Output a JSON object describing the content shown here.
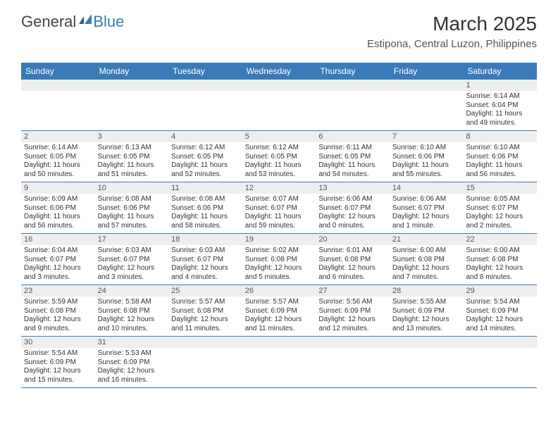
{
  "logo": {
    "dark": "General",
    "blue": "Blue"
  },
  "title": "March 2025",
  "location": "Estipona, Central Luzon, Philippines",
  "colors": {
    "header_bg": "#3a7ab8",
    "header_text": "#ffffff",
    "daynum_bg": "#eeeeee",
    "border": "#3a7ab8",
    "body_text": "#333333"
  },
  "font": {
    "family": "Arial",
    "title_size": 28,
    "location_size": 15,
    "header_size": 12,
    "cell_size": 10
  },
  "dayHeaders": [
    "Sunday",
    "Monday",
    "Tuesday",
    "Wednesday",
    "Thursday",
    "Friday",
    "Saturday"
  ],
  "weeks": [
    [
      {
        "n": "",
        "sr": "",
        "ss": "",
        "dl": ""
      },
      {
        "n": "",
        "sr": "",
        "ss": "",
        "dl": ""
      },
      {
        "n": "",
        "sr": "",
        "ss": "",
        "dl": ""
      },
      {
        "n": "",
        "sr": "",
        "ss": "",
        "dl": ""
      },
      {
        "n": "",
        "sr": "",
        "ss": "",
        "dl": ""
      },
      {
        "n": "",
        "sr": "",
        "ss": "",
        "dl": ""
      },
      {
        "n": "1",
        "sr": "Sunrise: 6:14 AM",
        "ss": "Sunset: 6:04 PM",
        "dl": "Daylight: 11 hours and 49 minutes."
      }
    ],
    [
      {
        "n": "2",
        "sr": "Sunrise: 6:14 AM",
        "ss": "Sunset: 6:05 PM",
        "dl": "Daylight: 11 hours and 50 minutes."
      },
      {
        "n": "3",
        "sr": "Sunrise: 6:13 AM",
        "ss": "Sunset: 6:05 PM",
        "dl": "Daylight: 11 hours and 51 minutes."
      },
      {
        "n": "4",
        "sr": "Sunrise: 6:12 AM",
        "ss": "Sunset: 6:05 PM",
        "dl": "Daylight: 11 hours and 52 minutes."
      },
      {
        "n": "5",
        "sr": "Sunrise: 6:12 AM",
        "ss": "Sunset: 6:05 PM",
        "dl": "Daylight: 11 hours and 53 minutes."
      },
      {
        "n": "6",
        "sr": "Sunrise: 6:11 AM",
        "ss": "Sunset: 6:05 PM",
        "dl": "Daylight: 11 hours and 54 minutes."
      },
      {
        "n": "7",
        "sr": "Sunrise: 6:10 AM",
        "ss": "Sunset: 6:06 PM",
        "dl": "Daylight: 11 hours and 55 minutes."
      },
      {
        "n": "8",
        "sr": "Sunrise: 6:10 AM",
        "ss": "Sunset: 6:06 PM",
        "dl": "Daylight: 11 hours and 56 minutes."
      }
    ],
    [
      {
        "n": "9",
        "sr": "Sunrise: 6:09 AM",
        "ss": "Sunset: 6:06 PM",
        "dl": "Daylight: 11 hours and 56 minutes."
      },
      {
        "n": "10",
        "sr": "Sunrise: 6:08 AM",
        "ss": "Sunset: 6:06 PM",
        "dl": "Daylight: 11 hours and 57 minutes."
      },
      {
        "n": "11",
        "sr": "Sunrise: 6:08 AM",
        "ss": "Sunset: 6:06 PM",
        "dl": "Daylight: 11 hours and 58 minutes."
      },
      {
        "n": "12",
        "sr": "Sunrise: 6:07 AM",
        "ss": "Sunset: 6:07 PM",
        "dl": "Daylight: 11 hours and 59 minutes."
      },
      {
        "n": "13",
        "sr": "Sunrise: 6:06 AM",
        "ss": "Sunset: 6:07 PM",
        "dl": "Daylight: 12 hours and 0 minutes."
      },
      {
        "n": "14",
        "sr": "Sunrise: 6:06 AM",
        "ss": "Sunset: 6:07 PM",
        "dl": "Daylight: 12 hours and 1 minute."
      },
      {
        "n": "15",
        "sr": "Sunrise: 6:05 AM",
        "ss": "Sunset: 6:07 PM",
        "dl": "Daylight: 12 hours and 2 minutes."
      }
    ],
    [
      {
        "n": "16",
        "sr": "Sunrise: 6:04 AM",
        "ss": "Sunset: 6:07 PM",
        "dl": "Daylight: 12 hours and 3 minutes."
      },
      {
        "n": "17",
        "sr": "Sunrise: 6:03 AM",
        "ss": "Sunset: 6:07 PM",
        "dl": "Daylight: 12 hours and 3 minutes."
      },
      {
        "n": "18",
        "sr": "Sunrise: 6:03 AM",
        "ss": "Sunset: 6:07 PM",
        "dl": "Daylight: 12 hours and 4 minutes."
      },
      {
        "n": "19",
        "sr": "Sunrise: 6:02 AM",
        "ss": "Sunset: 6:08 PM",
        "dl": "Daylight: 12 hours and 5 minutes."
      },
      {
        "n": "20",
        "sr": "Sunrise: 6:01 AM",
        "ss": "Sunset: 6:08 PM",
        "dl": "Daylight: 12 hours and 6 minutes."
      },
      {
        "n": "21",
        "sr": "Sunrise: 6:00 AM",
        "ss": "Sunset: 6:08 PM",
        "dl": "Daylight: 12 hours and 7 minutes."
      },
      {
        "n": "22",
        "sr": "Sunrise: 6:00 AM",
        "ss": "Sunset: 6:08 PM",
        "dl": "Daylight: 12 hours and 8 minutes."
      }
    ],
    [
      {
        "n": "23",
        "sr": "Sunrise: 5:59 AM",
        "ss": "Sunset: 6:08 PM",
        "dl": "Daylight: 12 hours and 9 minutes."
      },
      {
        "n": "24",
        "sr": "Sunrise: 5:58 AM",
        "ss": "Sunset: 6:08 PM",
        "dl": "Daylight: 12 hours and 10 minutes."
      },
      {
        "n": "25",
        "sr": "Sunrise: 5:57 AM",
        "ss": "Sunset: 6:08 PM",
        "dl": "Daylight: 12 hours and 11 minutes."
      },
      {
        "n": "26",
        "sr": "Sunrise: 5:57 AM",
        "ss": "Sunset: 6:09 PM",
        "dl": "Daylight: 12 hours and 11 minutes."
      },
      {
        "n": "27",
        "sr": "Sunrise: 5:56 AM",
        "ss": "Sunset: 6:09 PM",
        "dl": "Daylight: 12 hours and 12 minutes."
      },
      {
        "n": "28",
        "sr": "Sunrise: 5:55 AM",
        "ss": "Sunset: 6:09 PM",
        "dl": "Daylight: 12 hours and 13 minutes."
      },
      {
        "n": "29",
        "sr": "Sunrise: 5:54 AM",
        "ss": "Sunset: 6:09 PM",
        "dl": "Daylight: 12 hours and 14 minutes."
      }
    ],
    [
      {
        "n": "30",
        "sr": "Sunrise: 5:54 AM",
        "ss": "Sunset: 6:09 PM",
        "dl": "Daylight: 12 hours and 15 minutes."
      },
      {
        "n": "31",
        "sr": "Sunrise: 5:53 AM",
        "ss": "Sunset: 6:09 PM",
        "dl": "Daylight: 12 hours and 16 minutes."
      },
      {
        "n": "",
        "sr": "",
        "ss": "",
        "dl": ""
      },
      {
        "n": "",
        "sr": "",
        "ss": "",
        "dl": ""
      },
      {
        "n": "",
        "sr": "",
        "ss": "",
        "dl": ""
      },
      {
        "n": "",
        "sr": "",
        "ss": "",
        "dl": ""
      },
      {
        "n": "",
        "sr": "",
        "ss": "",
        "dl": ""
      }
    ]
  ]
}
